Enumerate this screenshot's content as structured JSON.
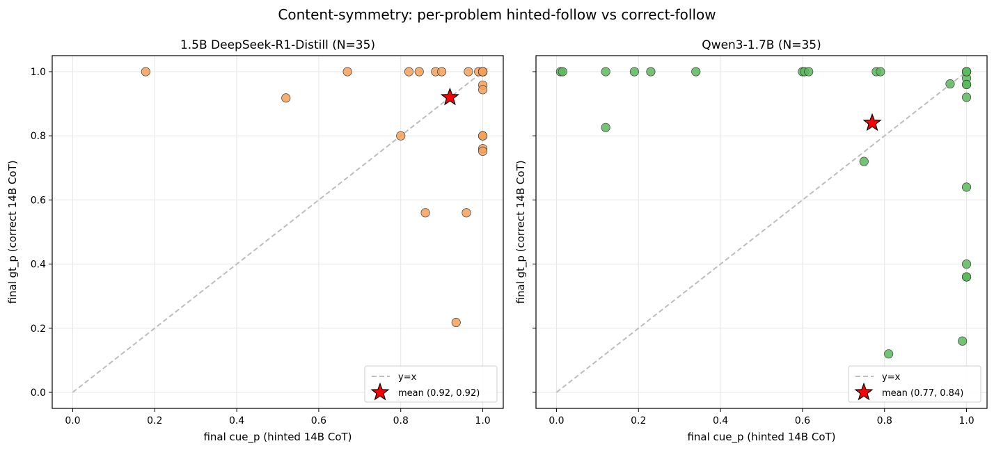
{
  "suptitle": "Content-symmetry: per-problem hinted-follow vs correct-follow",
  "chart_data": [
    {
      "type": "scatter",
      "title": "1.5B DeepSeek-R1-Distill  (N=35)",
      "xlabel": "final cue_p  (hinted 14B CoT)",
      "ylabel": "final gt_p  (correct 14B CoT)",
      "xlim": [
        -0.05,
        1.05
      ],
      "ylim": [
        -0.05,
        1.05
      ],
      "xticks": [
        "0.0",
        "0.2",
        "0.4",
        "0.6",
        "0.8",
        "1.0"
      ],
      "yticks": [
        "0.0",
        "0.2",
        "0.4",
        "0.6",
        "0.8",
        "1.0"
      ],
      "grid": true,
      "legend_position": "lower-right",
      "point_color": "#f5a05a",
      "points": [
        [
          0.178,
          1.0
        ],
        [
          0.52,
          0.918
        ],
        [
          0.67,
          1.0
        ],
        [
          0.82,
          1.0
        ],
        [
          0.845,
          1.0
        ],
        [
          0.885,
          1.0
        ],
        [
          0.9,
          1.0
        ],
        [
          0.965,
          1.0
        ],
        [
          0.99,
          1.0
        ],
        [
          1.0,
          1.0
        ],
        [
          1.0,
          1.0
        ],
        [
          1.0,
          1.0
        ],
        [
          1.0,
          1.0
        ],
        [
          1.0,
          1.0
        ],
        [
          1.0,
          0.958
        ],
        [
          1.0,
          0.944
        ],
        [
          0.8,
          0.8
        ],
        [
          1.0,
          0.8
        ],
        [
          1.0,
          0.8
        ],
        [
          1.0,
          0.8
        ],
        [
          1.0,
          0.76
        ],
        [
          1.0,
          0.752
        ],
        [
          0.86,
          0.56
        ],
        [
          0.96,
          0.56
        ],
        [
          0.935,
          0.218
        ],
        [
          1.0,
          1.0
        ],
        [
          1.0,
          1.0
        ],
        [
          1.0,
          1.0
        ],
        [
          1.0,
          1.0
        ],
        [
          1.0,
          1.0
        ],
        [
          1.0,
          1.0
        ],
        [
          1.0,
          1.0
        ],
        [
          1.0,
          1.0
        ],
        [
          1.0,
          1.0
        ],
        [
          1.0,
          1.0
        ]
      ],
      "mean": [
        0.92,
        0.92
      ],
      "legend": [
        "y=x",
        "mean (0.92, 0.92)"
      ],
      "show_y_ticklabels": true
    },
    {
      "type": "scatter",
      "title": "Qwen3-1.7B  (N=35)",
      "xlabel": "final cue_p  (hinted 14B CoT)",
      "ylabel": "final gt_p  (correct 14B CoT)",
      "xlim": [
        -0.05,
        1.05
      ],
      "ylim": [
        -0.05,
        1.05
      ],
      "xticks": [
        "0.0",
        "0.2",
        "0.4",
        "0.6",
        "0.8",
        "1.0"
      ],
      "yticks": [
        "0.0",
        "0.2",
        "0.4",
        "0.6",
        "0.8",
        "1.0"
      ],
      "grid": true,
      "legend_position": "lower-right",
      "point_color": "#5cb85c",
      "points": [
        [
          0.01,
          1.0
        ],
        [
          0.015,
          1.0
        ],
        [
          0.12,
          1.0
        ],
        [
          0.19,
          1.0
        ],
        [
          0.23,
          1.0
        ],
        [
          0.34,
          1.0
        ],
        [
          0.6,
          1.0
        ],
        [
          0.605,
          1.0
        ],
        [
          0.615,
          1.0
        ],
        [
          0.78,
          1.0
        ],
        [
          0.79,
          1.0
        ],
        [
          1.0,
          1.0
        ],
        [
          1.0,
          1.0
        ],
        [
          1.0,
          1.0
        ],
        [
          1.0,
          1.0
        ],
        [
          1.0,
          0.98
        ],
        [
          0.96,
          0.962
        ],
        [
          1.0,
          0.96
        ],
        [
          1.0,
          0.96
        ],
        [
          1.0,
          0.92
        ],
        [
          0.12,
          0.826
        ],
        [
          0.75,
          0.72
        ],
        [
          1.0,
          0.64
        ],
        [
          1.0,
          0.4
        ],
        [
          1.0,
          0.36
        ],
        [
          1.0,
          0.36
        ],
        [
          0.99,
          0.16
        ],
        [
          0.81,
          0.12
        ],
        [
          1.0,
          1.0
        ],
        [
          1.0,
          1.0
        ],
        [
          1.0,
          1.0
        ],
        [
          1.0,
          1.0
        ],
        [
          1.0,
          0.96
        ],
        [
          1.0,
          0.36
        ],
        [
          1.0,
          1.0
        ]
      ],
      "mean": [
        0.77,
        0.84
      ],
      "legend": [
        "y=x",
        "mean (0.77, 0.84)"
      ],
      "show_y_ticklabels": false
    }
  ]
}
